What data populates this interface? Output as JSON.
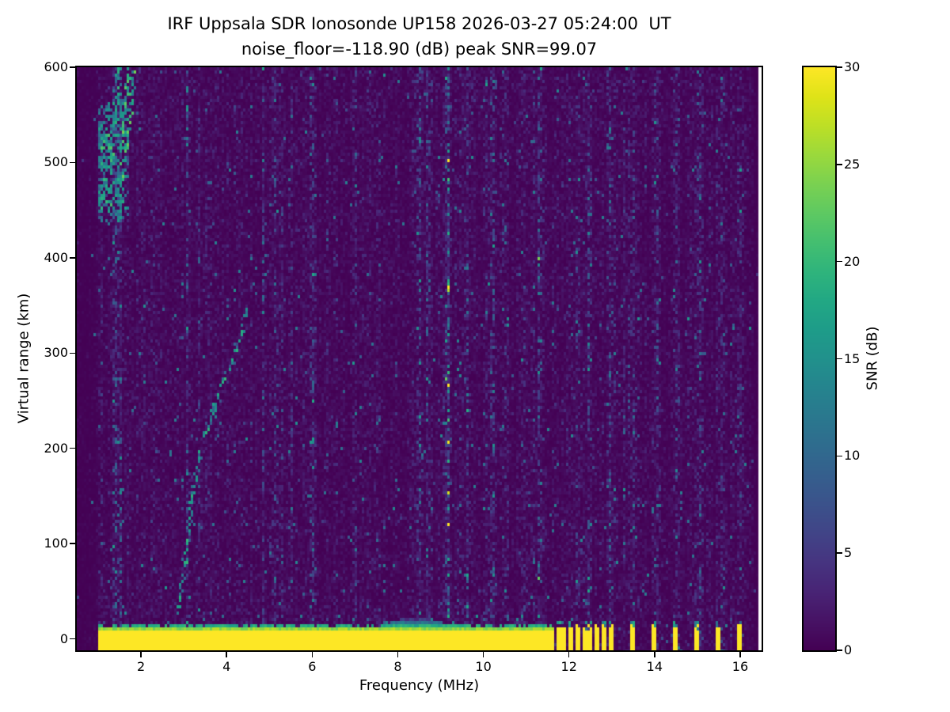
{
  "figure": {
    "background": "#ffffff",
    "text_color": "#000000"
  },
  "chart_data": {
    "type": "heatmap",
    "title": "IRF Uppsala SDR Ionosonde UP158 2026-03-27 05:24:00  UT",
    "subtitle": "noise_floor=-118.90 (dB) peak SNR=99.07",
    "station": "UP158",
    "instrument": "IRF Uppsala SDR Ionosonde",
    "timestamp_ut": "2026-03-27 05:24:00",
    "noise_floor_db": -118.9,
    "peak_snr_db": 99.07,
    "xlabel": "Frequency (MHz)",
    "ylabel": "Virtual range (km)",
    "xlim": [
      0.5,
      16.5
    ],
    "ylim": [
      -12,
      600
    ],
    "xticks": [
      2,
      4,
      6,
      8,
      10,
      12,
      14,
      16
    ],
    "yticks": [
      0,
      100,
      200,
      300,
      400,
      500,
      600
    ],
    "grid": false,
    "colorbar": {
      "label": "SNR (dB)",
      "min": 0,
      "max": 30,
      "ticks": [
        0,
        5,
        10,
        15,
        20,
        25,
        30
      ],
      "colormap": "viridis"
    },
    "viridis_stops": [
      "#440154",
      "#471365",
      "#482475",
      "#463480",
      "#414487",
      "#3B528B",
      "#355F8D",
      "#2F6C8E",
      "#2A788E",
      "#25848E",
      "#21918C",
      "#1E9C89",
      "#22A884",
      "#2FB47C",
      "#44BF70",
      "#5EC962",
      "#7AD151",
      "#9BD93C",
      "#BDDF26",
      "#DFE318",
      "#FDE725"
    ],
    "background_value_db": 0,
    "features": {
      "ground_echo_band": {
        "freq_start_mhz": 1.0,
        "freq_end_mhz": 11.65,
        "range_km": [
          -12,
          12
        ],
        "snr_db": 30,
        "fringe_top_km": 18,
        "bump": {
          "freq_mhz": 8.4,
          "top_km": 25
        }
      },
      "pulsed_bars_mhz": [
        11.75,
        11.9,
        12.05,
        12.2,
        12.35,
        12.5,
        12.65,
        12.8,
        13.0,
        13.5,
        14.0,
        14.5,
        15.0,
        15.5,
        16.0
      ],
      "interference_stripes_mhz": [
        5.1,
        6.0,
        7.0,
        8.5,
        8.7,
        9.1,
        9.6,
        10.2,
        10.5,
        10.9,
        11.3,
        12.2,
        12.5,
        13.0,
        13.5,
        14.05,
        14.55,
        15.05,
        15.55,
        16.05
      ],
      "echo_traces": [
        {
          "name": "spread-F-scatter-cluster",
          "freq_mhz": [
            1.0,
            1.7
          ],
          "range_km": [
            435,
            565
          ],
          "snr_db": [
            5,
            18
          ],
          "points": 260
        },
        {
          "name": "spread-F-streak-1",
          "polyline": [
            [
              1.42,
              470
            ],
            [
              1.72,
              600
            ]
          ],
          "snr_db": [
            10,
            24
          ]
        },
        {
          "name": "spread-F-streak-2",
          "polyline": [
            [
              1.52,
              450
            ],
            [
              1.85,
              600
            ]
          ],
          "snr_db": [
            10,
            24
          ]
        },
        {
          "name": "spread-F-streak-3",
          "polyline": [
            [
              1.33,
              515
            ],
            [
              1.5,
              600
            ]
          ],
          "snr_db": [
            8,
            20
          ]
        },
        {
          "name": "E-layer-slant-trace",
          "polyline": [
            [
              2.85,
              25
            ],
            [
              3.05,
              90
            ],
            [
              3.2,
              150
            ],
            [
              3.35,
              190
            ],
            [
              3.55,
              220
            ],
            [
              3.75,
              248
            ],
            [
              3.95,
              272
            ],
            [
              4.1,
              288
            ],
            [
              4.25,
              303
            ],
            [
              4.4,
              325
            ],
            [
              4.5,
              345
            ]
          ],
          "snr_db": [
            7,
            20
          ]
        },
        {
          "name": "E-layer-upper-faint",
          "polyline": [
            [
              4.55,
              352
            ],
            [
              4.75,
              368
            ],
            [
              4.95,
              385
            ]
          ],
          "snr_db": [
            5,
            12
          ]
        }
      ],
      "no_data_right_edge_mhz": 16.42
    }
  }
}
